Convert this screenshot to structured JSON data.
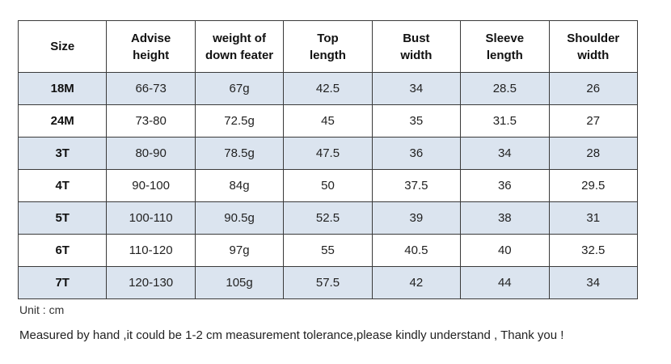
{
  "table": {
    "headers": [
      [
        "Size"
      ],
      [
        "Advise",
        "height"
      ],
      [
        "weight of",
        "down feater"
      ],
      [
        "Top",
        "length"
      ],
      [
        "Bust",
        "width"
      ],
      [
        "Sleeve",
        "length"
      ],
      [
        "Shoulder",
        "width"
      ]
    ],
    "rows": [
      [
        "18M",
        "66-73",
        "67g",
        "42.5",
        "34",
        "28.5",
        "26"
      ],
      [
        "24M",
        "73-80",
        "72.5g",
        "45",
        "35",
        "31.5",
        "27"
      ],
      [
        "3T",
        "80-90",
        "78.5g",
        "47.5",
        "36",
        "34",
        "28"
      ],
      [
        "4T",
        "90-100",
        "84g",
        "50",
        "37.5",
        "36",
        "29.5"
      ],
      [
        "5T",
        "100-110",
        "90.5g",
        "52.5",
        "39",
        "38",
        "31"
      ],
      [
        "6T",
        "110-120",
        "97g",
        "55",
        "40.5",
        "40",
        "32.5"
      ],
      [
        "7T",
        "120-130",
        "105g",
        "57.5",
        "42",
        "44",
        "34"
      ]
    ],
    "shaded_row_color": "#dbe4ef",
    "border_color": "#3a3a3a"
  },
  "notes": {
    "unit": "Unit : cm",
    "disclaimer": "Measured by hand ,it could be 1-2 cm measurement tolerance,please kindly understand , Thank you !"
  }
}
